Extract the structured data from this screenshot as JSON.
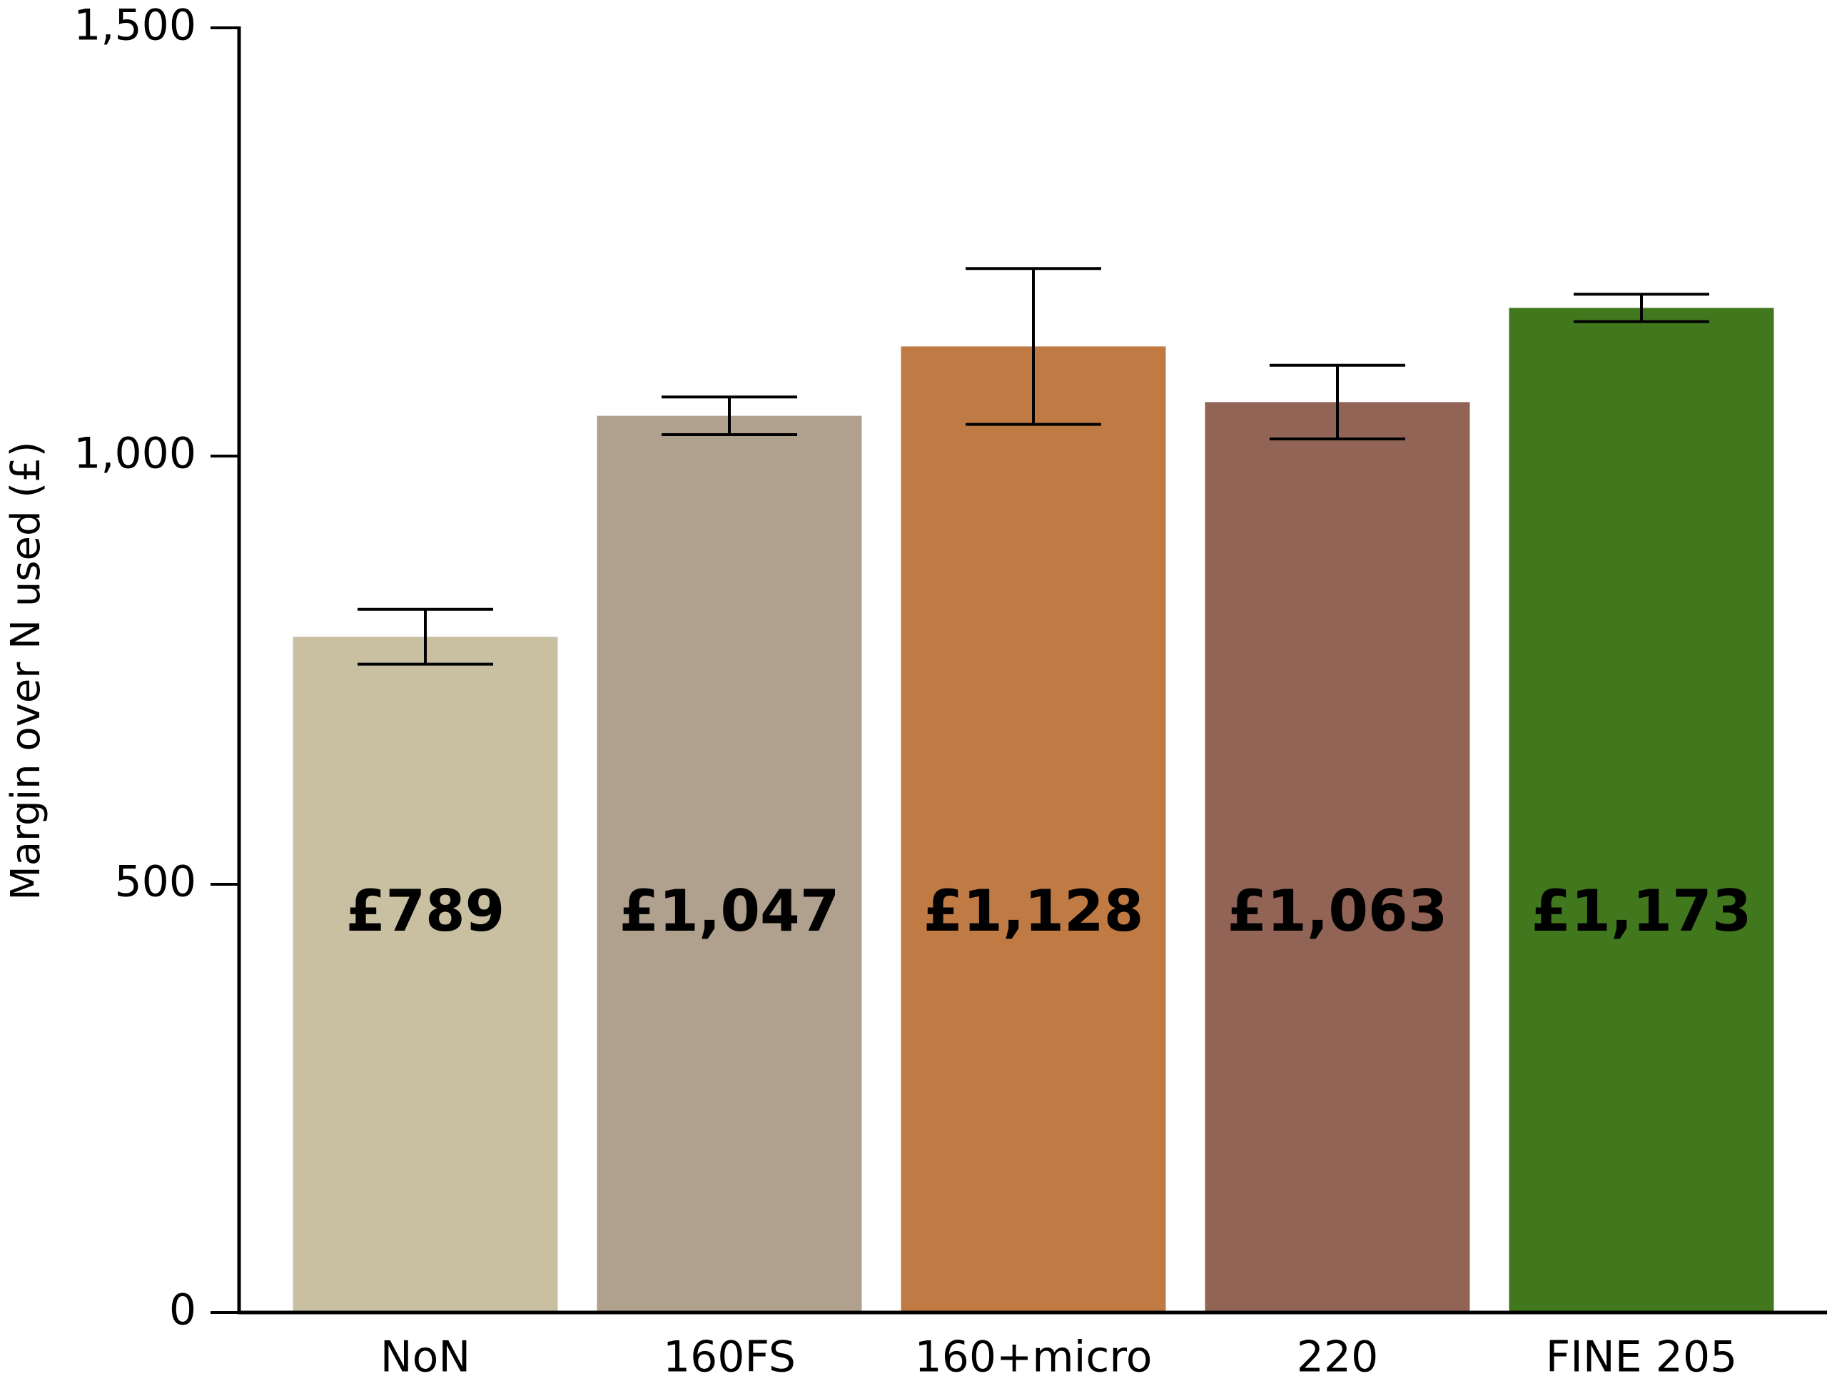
{
  "chart_data": {
    "type": "bar",
    "y_label": "Margin over N used (£)",
    "categories": [
      "NoN",
      "160FS",
      "160+micro",
      "220",
      "FINE 205"
    ],
    "values": [
      789,
      1047,
      1128,
      1063,
      1173
    ],
    "value_labels": [
      "£789",
      "£1,047",
      "£1,128",
      "£1,063",
      "£1,173"
    ],
    "errors": [
      32,
      22,
      91,
      43,
      16
    ],
    "colors": [
      "#c9c0a2",
      "#b0a08e",
      "#c07a43",
      "#916455",
      "#41781d"
    ],
    "ylim": [
      0,
      1500
    ],
    "yticks": [
      0,
      500,
      {
        "value": 1000,
        "label": "1,000"
      },
      {
        "value": 1500,
        "label": "1,500"
      }
    ]
  }
}
